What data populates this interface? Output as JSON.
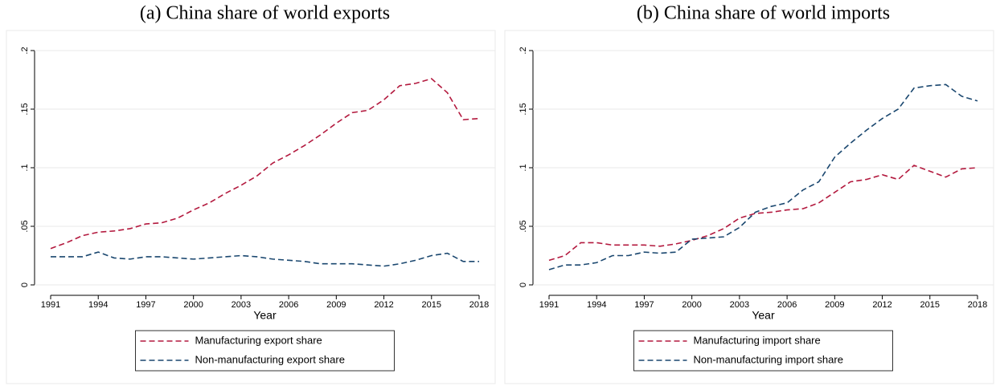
{
  "chart_data": [
    {
      "type": "line",
      "title": "(a) China share of world exports",
      "x_label": "Year",
      "x": [
        1991,
        1992,
        1993,
        1994,
        1995,
        1996,
        1997,
        1998,
        1999,
        2000,
        2001,
        2002,
        2003,
        2004,
        2005,
        2006,
        2007,
        2008,
        2009,
        2010,
        2011,
        2012,
        2013,
        2014,
        2015,
        2016,
        2017,
        2018
      ],
      "xlim": [
        1991,
        2018
      ],
      "xticks": [
        1991,
        1994,
        1997,
        2000,
        2003,
        2006,
        2009,
        2012,
        2015,
        2018
      ],
      "ylim": [
        0,
        0.2
      ],
      "yticks": [
        0,
        {
          "value": 0.05,
          "label": ".05"
        },
        {
          "value": 0.1,
          "label": ".1"
        },
        {
          "value": 0.15,
          "label": ".15"
        },
        {
          "value": 0.2,
          "label": ".2"
        }
      ],
      "grid": true,
      "legend": "bottom",
      "linestyle": "dashed",
      "series": [
        {
          "name": "Manufacturing export share",
          "color": "#b3193e",
          "values": [
            0.031,
            0.036,
            0.042,
            0.045,
            0.046,
            0.048,
            0.052,
            0.053,
            0.057,
            0.064,
            0.07,
            0.078,
            0.085,
            0.093,
            0.104,
            0.111,
            0.119,
            0.128,
            0.138,
            0.147,
            0.149,
            0.158,
            0.17,
            0.172,
            0.176,
            0.164,
            0.141,
            0.142
          ]
        },
        {
          "name": "Non-manufacturing export share",
          "color": "#1a476f",
          "values": [
            0.024,
            0.024,
            0.024,
            0.028,
            0.023,
            0.022,
            0.024,
            0.024,
            0.023,
            0.022,
            0.023,
            0.024,
            0.025,
            0.024,
            0.022,
            0.021,
            0.02,
            0.018,
            0.018,
            0.018,
            0.017,
            0.016,
            0.018,
            0.021,
            0.025,
            0.027,
            0.02,
            0.02
          ]
        }
      ]
    },
    {
      "type": "line",
      "title": "(b) China share of world imports",
      "x_label": "Year",
      "x": [
        1991,
        1992,
        1993,
        1994,
        1995,
        1996,
        1997,
        1998,
        1999,
        2000,
        2001,
        2002,
        2003,
        2004,
        2005,
        2006,
        2007,
        2008,
        2009,
        2010,
        2011,
        2012,
        2013,
        2014,
        2015,
        2016,
        2017,
        2018
      ],
      "xlim": [
        1991,
        2018
      ],
      "xticks": [
        1991,
        1994,
        1997,
        2000,
        2003,
        2006,
        2009,
        2012,
        2015,
        2018
      ],
      "ylim": [
        0,
        0.2
      ],
      "yticks": [
        0,
        {
          "value": 0.05,
          "label": ".05"
        },
        {
          "value": 0.1,
          "label": ".1"
        },
        {
          "value": 0.15,
          "label": ".15"
        },
        {
          "value": 0.2,
          "label": ".2"
        }
      ],
      "grid": true,
      "legend": "bottom",
      "linestyle": "dashed",
      "series": [
        {
          "name": "Manufacturing import share",
          "color": "#b3193e",
          "values": [
            0.021,
            0.025,
            0.036,
            0.036,
            0.034,
            0.034,
            0.034,
            0.033,
            0.035,
            0.038,
            0.042,
            0.048,
            0.057,
            0.061,
            0.062,
            0.064,
            0.065,
            0.07,
            0.079,
            0.088,
            0.09,
            0.094,
            0.09,
            0.102,
            0.097,
            0.092,
            0.099,
            0.1
          ]
        },
        {
          "name": "Non-manufacturing import share",
          "color": "#1a476f",
          "values": [
            0.013,
            0.017,
            0.017,
            0.019,
            0.025,
            0.025,
            0.028,
            0.027,
            0.028,
            0.039,
            0.04,
            0.041,
            0.049,
            0.062,
            0.067,
            0.07,
            0.081,
            0.088,
            0.109,
            0.121,
            0.132,
            0.142,
            0.15,
            0.168,
            0.17,
            0.171,
            0.161,
            0.157
          ]
        }
      ]
    }
  ]
}
